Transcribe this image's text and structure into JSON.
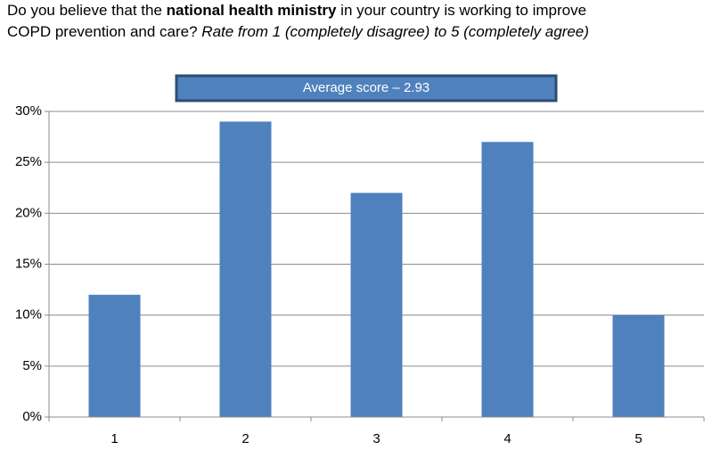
{
  "chart_data": {
    "type": "bar",
    "title_runs": [
      {
        "text": "Do you believe that the ",
        "style": "normal"
      },
      {
        "text": "national health ministry",
        "style": "bold"
      },
      {
        "text": " in your country is working to improve COPD prevention and care? ",
        "style": "normal"
      },
      {
        "text": "Rate from 1 (completely disagree) to 5 (completely agree)",
        "style": "italic"
      }
    ],
    "annotation": "Average score – 2.93",
    "categories": [
      "1",
      "2",
      "3",
      "4",
      "5"
    ],
    "values": [
      12,
      29,
      22,
      27,
      10
    ],
    "color": "#4f81bd",
    "ylim": [
      0,
      30
    ],
    "yticks": [
      {
        "value": 0,
        "label": "0%"
      },
      {
        "value": 5,
        "label": "5%"
      },
      {
        "value": 10,
        "label": "10%"
      },
      {
        "value": 15,
        "label": "15%"
      },
      {
        "value": 20,
        "label": "20%"
      },
      {
        "value": 25,
        "label": "25%"
      },
      {
        "value": 30,
        "label": "30%"
      }
    ],
    "grid": true
  }
}
